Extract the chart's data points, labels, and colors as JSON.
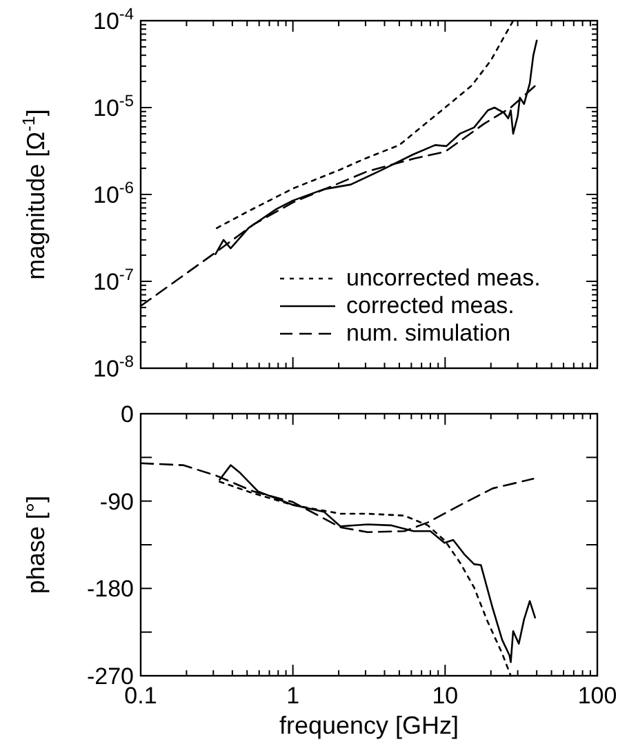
{
  "chart_data": [
    {
      "type": "line",
      "ylabel": "magnitude [Ω$^{-1}$]",
      "log": "xy",
      "xlim": [
        0.1,
        100
      ],
      "xticks": [
        0.1,
        1,
        10,
        100
      ],
      "ylim": [
        1e-08,
        0.0001
      ],
      "yticks": [
        {
          "value": 1e-08,
          "label": "10$^{-8}$"
        },
        {
          "value": 1e-07,
          "label": "10$^{-7}$"
        },
        {
          "value": 1e-06,
          "label": "10$^{-6}$"
        },
        {
          "value": 1e-05,
          "label": "10$^{-5}$"
        },
        {
          "value": 0.0001,
          "label": "10$^{-4}$"
        }
      ],
      "tick_labels": "y",
      "legend": "bottom right",
      "grid": false,
      "series": [
        {
          "name": "uncorrected meas.",
          "color": "#000000",
          "line_style": "dotted",
          "x": [
            0.316,
            0.5,
            1,
            2,
            3,
            5,
            7,
            10,
            15,
            20,
            28
          ],
          "values": [
            4.1e-07,
            6.3e-07,
            1.17e-06,
            1.9e-06,
            2.6e-06,
            3.7e-06,
            6e-06,
            1e-05,
            1.8e-05,
            3.5e-05,
            0.0001
          ]
        },
        {
          "name": "corrected meas.",
          "color": "#000000",
          "line_style": "solid",
          "x": [
            0.31,
            0.35,
            0.39,
            0.51,
            0.78,
            1,
            1.6,
            2.4,
            3.8,
            6.2,
            8.6,
            10.2,
            12.5,
            15.5,
            19.1,
            21.1,
            24.4,
            26,
            27,
            28,
            30,
            31,
            33,
            36,
            38,
            40
          ],
          "values": [
            2.05e-07,
            3e-07,
            2.4e-07,
            4.1e-07,
            6.8e-07,
            8.5e-07,
            1.15e-06,
            1.3e-06,
            1.9e-06,
            2.9e-06,
            3.7e-06,
            3.6e-06,
            5e-06,
            5.9e-06,
            9.3e-06,
            1e-05,
            8.7e-06,
            7.5e-06,
            9.3e-06,
            5e-06,
            8e-06,
            1.3e-05,
            1.1e-05,
            1.9e-05,
            4e-05,
            5.9e-05
          ]
        },
        {
          "name": "num. simulation",
          "color": "#000000",
          "line_style": "dashed",
          "x": [
            0.1,
            0.316,
            0.55,
            1,
            3.1,
            6.3,
            10,
            18,
            27,
            40
          ],
          "values": [
            5.2e-08,
            2.2e-07,
            4.5e-07,
            8.1e-07,
            1.85e-06,
            2.6e-06,
            3.1e-06,
            6.5e-06,
            1e-05,
            1.85e-05
          ]
        }
      ]
    },
    {
      "type": "line",
      "xlabel": "frequency [GHz]",
      "ylabel": "phase [°]",
      "log": "x",
      "xlim": [
        0.1,
        100
      ],
      "xticks": [
        0.1,
        1,
        10,
        100
      ],
      "ylim": [
        -270,
        0
      ],
      "yticks": [
        -270,
        {
          "value": -225,
          "label": null
        },
        -180,
        {
          "value": -135,
          "label": null
        },
        -90,
        {
          "value": -45,
          "label": null
        },
        0
      ],
      "grid": false,
      "series": [
        {
          "color": "#000000",
          "line_style": "dotted",
          "x": [
            0.33,
            0.55,
            1,
            2.05,
            3.1,
            5.4,
            7.7,
            10,
            12.6,
            15.5,
            19,
            23.7,
            27
          ],
          "values": [
            -70,
            -82,
            -94,
            -103,
            -103,
            -105,
            -115,
            -131,
            -154,
            -179,
            -214,
            -247,
            -270
          ]
        },
        {
          "color": "#000000",
          "line_style": "solid",
          "x": [
            0.33,
            0.39,
            0.45,
            0.59,
            1,
            1.6,
            2.05,
            3.1,
            4.4,
            6.2,
            8,
            9.9,
            11.3,
            13.4,
            15.5,
            17.2,
            20.5,
            23.7,
            26.5,
            27,
            28,
            30.5,
            33,
            36,
            39
          ],
          "values": [
            -68,
            -53,
            -61,
            -80,
            -94,
            -101,
            -116,
            -114,
            -115,
            -121,
            -121,
            -133,
            -130,
            -145,
            -155,
            -156,
            -200,
            -233,
            -249,
            -256,
            -224,
            -237,
            -212,
            -193,
            -210
          ]
        },
        {
          "color": "#000000",
          "line_style": "dashed",
          "x": [
            0.1,
            0.19,
            0.316,
            0.55,
            1,
            2.05,
            3.1,
            5.4,
            7.7,
            12.6,
            20.5,
            38
          ],
          "values": [
            -51,
            -53,
            -64,
            -80,
            -91,
            -117,
            -122,
            -121,
            -112,
            -94,
            -77,
            -67
          ]
        }
      ]
    }
  ]
}
